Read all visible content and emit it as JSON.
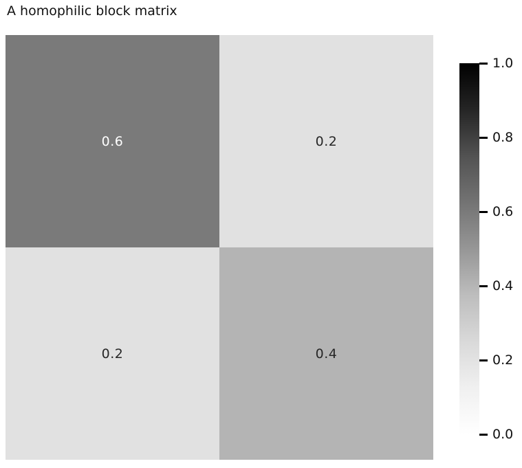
{
  "title": "A homophilic block matrix",
  "chart_data": {
    "type": "heatmap",
    "title": "A homophilic block matrix",
    "rows": 2,
    "cols": 2,
    "values": [
      [
        0.6,
        0.2
      ],
      [
        0.2,
        0.4
      ]
    ],
    "cell_labels": [
      [
        "0.6",
        "0.2"
      ],
      [
        "0.2",
        "0.4"
      ]
    ],
    "cell_colors": [
      [
        "#7a7a7a",
        "#e1e1e1"
      ],
      [
        "#e1e1e1",
        "#b4b4b4"
      ]
    ],
    "cell_text_colors": [
      [
        "#ffffff",
        "#262626"
      ],
      [
        "#262626",
        "#262626"
      ]
    ],
    "colormap": "Greys",
    "grid": false,
    "legend_position": "colorbar-right",
    "colorbar": {
      "min": 0.0,
      "max": 1.0,
      "tick_labels": [
        "1.0",
        "0.8",
        "0.6",
        "0.4",
        "0.2",
        "0.0"
      ],
      "tick_values": [
        1.0,
        0.8,
        0.6,
        0.4,
        0.2,
        0.0
      ],
      "gradient_top_to_bottom": [
        "#000000",
        "#252525",
        "#525252",
        "#737373",
        "#969696",
        "#bdbdbd",
        "#d9d9d9",
        "#f0f0f0",
        "#ffffff"
      ]
    }
  }
}
